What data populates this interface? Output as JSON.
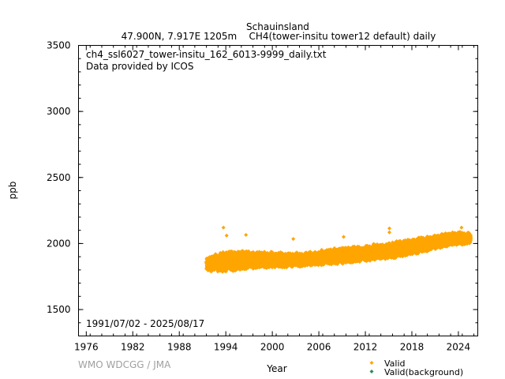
{
  "chart_data": {
    "type": "scatter",
    "title": "Schauinsland",
    "subtitle": "47.900N, 7.917E 1205m    CH4(tower-insitu tower12 default) daily",
    "file_label": "ch4_ssl6027_tower-insitu_162_6013-9999_daily.txt",
    "provider_label": "Data provided by ICOS",
    "date_range_label": "1991/07/02 - 2025/08/17",
    "xlabel": "Year",
    "ylabel": "ppb",
    "xlim": [
      1975.0,
      2026.5
    ],
    "ylim": [
      1300,
      3500
    ],
    "x_ticks": [
      "1976",
      "1982",
      "1988",
      "1994",
      "2000",
      "2006",
      "2012",
      "2018",
      "2024"
    ],
    "y_ticks": [
      "1500",
      "2000",
      "2500",
      "3000",
      "3500"
    ],
    "grid": false,
    "legend_placement": "bottom-right",
    "legend": [
      {
        "label": "Valid",
        "color": "#ffa500"
      },
      {
        "label": "Valid(background)",
        "color": "#2e8b57"
      }
    ],
    "series_envelope": [
      {
        "year": 1991.5,
        "low": 1785,
        "high": 1900
      },
      {
        "year": 1994,
        "low": 1775,
        "high": 1950
      },
      {
        "year": 1997,
        "low": 1800,
        "high": 1950
      },
      {
        "year": 2000,
        "low": 1810,
        "high": 1940
      },
      {
        "year": 2003,
        "low": 1820,
        "high": 1935
      },
      {
        "year": 2006,
        "low": 1830,
        "high": 1950
      },
      {
        "year": 2009,
        "low": 1845,
        "high": 1975
      },
      {
        "year": 2012,
        "low": 1860,
        "high": 1990
      },
      {
        "year": 2015,
        "low": 1880,
        "high": 2010
      },
      {
        "year": 2018,
        "low": 1910,
        "high": 2040
      },
      {
        "year": 2021,
        "low": 1950,
        "high": 2065
      },
      {
        "year": 2024,
        "low": 1985,
        "high": 2095
      },
      {
        "year": 2025.6,
        "low": 1995,
        "high": 2090
      }
    ],
    "peaks": [
      {
        "year": 1993.7,
        "value": 2120
      },
      {
        "year": 1994.1,
        "value": 2060
      },
      {
        "year": 1996.6,
        "value": 2065
      },
      {
        "year": 2002.7,
        "value": 2035
      },
      {
        "year": 2009.2,
        "value": 2050
      },
      {
        "year": 2015.1,
        "value": 2115
      },
      {
        "year": 2015.1,
        "value": 2085
      },
      {
        "year": 2024.4,
        "value": 2120
      }
    ]
  },
  "credit": "WMO WDCGG / JMA"
}
